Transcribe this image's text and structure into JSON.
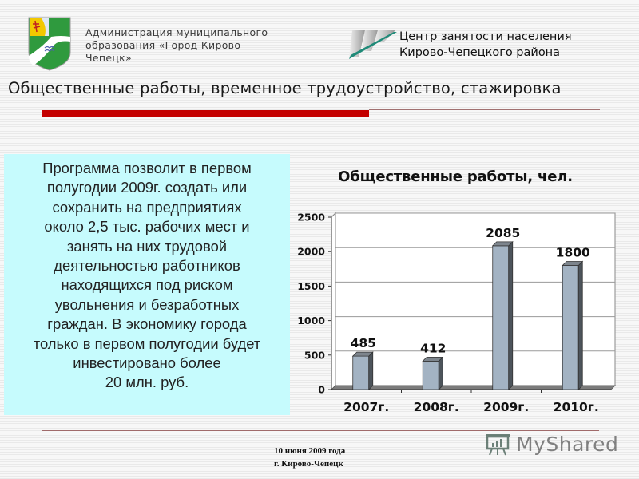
{
  "header": {
    "admin_line1": "Администрация муниципального",
    "admin_line2": "образования «Город Кирово-",
    "admin_line3": "Чепецк»",
    "center_line1": "Центр занятости населения",
    "center_line2": "Кирово-Чепецкого района",
    "coat_of_arms_icon": "kirovo-chepetsk-coat-of-arms",
    "center_logo_icon": "employment-center-logo"
  },
  "slide": {
    "title": "Общественные работы, временное трудоустройство, стажировка",
    "accent_color": "#c40000"
  },
  "info_box": {
    "text": "Программа позволит в первом\nполугодии 2009г. создать или\nсохранить на предприятиях\nоколо 2,5 тыс. рабочих мест и\nзанять на них трудовой\nдеятельностью работников\nнаходящихся под риском\nувольнения и безработных\nграждан. В экономику города\nтолько в первом полугодии будет\nинвестировано  более\n20 млн. руб.",
    "background_color": "#c6fbfd"
  },
  "chart_data": {
    "type": "bar",
    "title": "Общественные работы, чел.",
    "categories": [
      "2007г.",
      "2008г.",
      "2009г.",
      "2010г."
    ],
    "values": [
      485,
      412,
      2085,
      1800
    ],
    "data_labels": [
      "485",
      "412",
      "2085",
      "1800"
    ],
    "xlabel": "",
    "ylabel": "",
    "ylim": [
      0,
      2500
    ],
    "yticks": [
      "0",
      "500",
      "1000",
      "1500",
      "2000",
      "2500"
    ],
    "grid": true,
    "legend": false,
    "style": "3d-column",
    "bar_color": "#a3b3c3"
  },
  "footer": {
    "date": "10 июня 2009 года",
    "city": "г. Кирово-Чепецк",
    "watermark": "MyShared",
    "watermark_icon": "presentation-board-icon"
  }
}
